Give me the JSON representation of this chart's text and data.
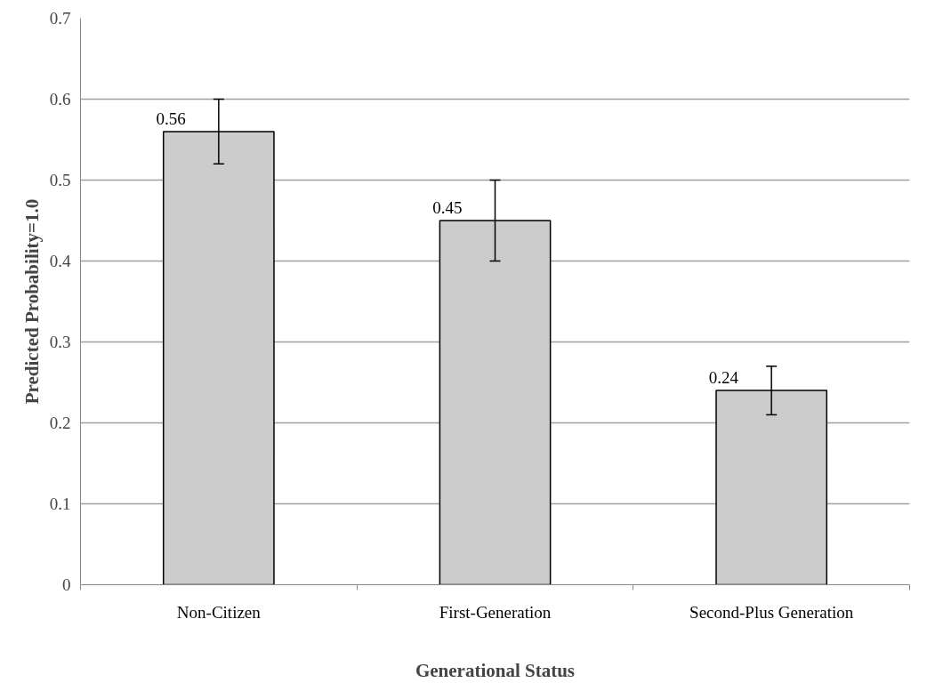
{
  "chart_data": {
    "type": "bar",
    "xlabel": "Generational Status",
    "ylabel": "Predicted Probability=1.0",
    "categories": [
      "Non-Citizen",
      "First-Generation",
      "Second-Plus Generation"
    ],
    "values": [
      0.56,
      0.45,
      0.24
    ],
    "color": "#cccccc",
    "errors": [
      [
        0.52,
        0.6
      ],
      [
        0.4,
        0.5
      ],
      [
        0.21,
        0.27
      ]
    ],
    "data_labels": true,
    "ylim": [
      0,
      0.7
    ],
    "yticks": [
      0,
      0.1,
      0.2,
      0.3,
      0.4,
      0.5,
      0.6,
      0.7
    ],
    "grid": "y"
  }
}
